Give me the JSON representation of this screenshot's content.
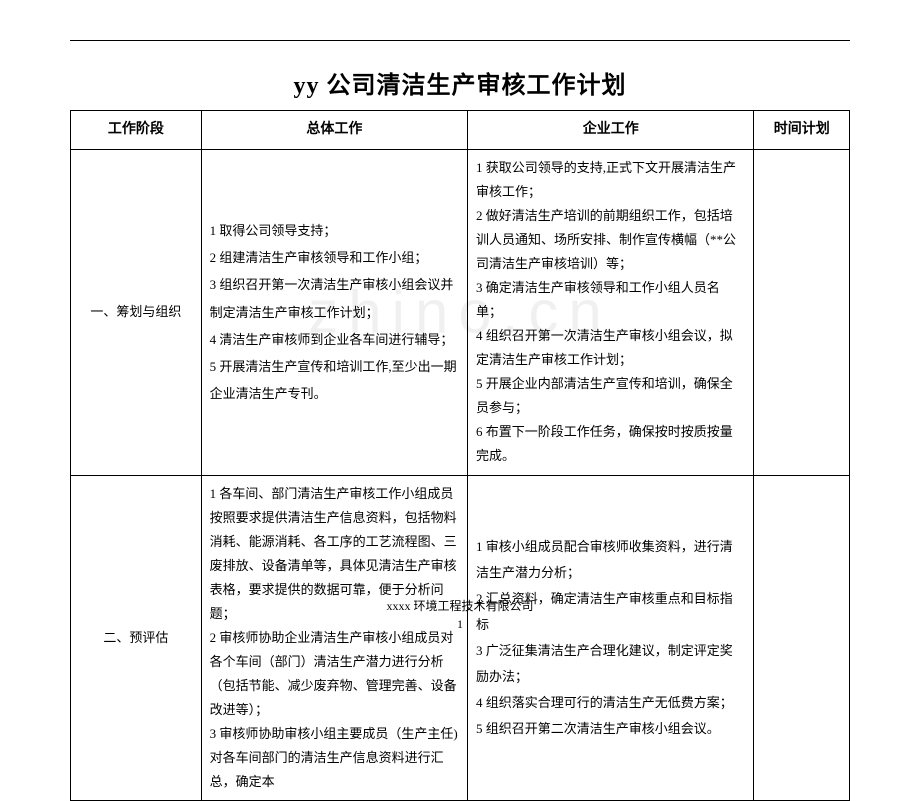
{
  "title": "yy 公司清洁生产审核工作计划",
  "watermark": "zhino.cn",
  "headers": {
    "stage": "工作阶段",
    "overall": "总体工作",
    "enterprise": "企业工作",
    "schedule": "时间计划"
  },
  "rows": [
    {
      "stage": "一、筹划与组织",
      "overall": "1 取得公司领导支持；\n2 组建清洁生产审核领导和工作小组；\n3 组织召开第一次清洁生产审核小组会议并制定清洁生产审核工作计划；\n4 清洁生产审核师到企业各车间进行辅导；\n5 开展清洁生产宣传和培训工作,至少出一期企业清洁生产专刊。",
      "enterprise": "1 获取公司领导的支持,正式下文开展清洁生产审核工作；\n2 做好清洁生产培训的前期组织工作，包括培训人员通知、场所安排、制作宣传横幅（**公司清洁生产审核培训）等；\n3 确定清洁生产审核领导和工作小组人员名单；\n4 组织召开第一次清洁生产审核小组会议，拟定清洁生产审核工作计划；\n5 开展企业内部清洁生产宣传和培训，确保全员参与；\n6 布置下一阶段工作任务，确保按时按质按量完成。",
      "schedule": ""
    },
    {
      "stage": "二、预评估",
      "overall": "1 各车间、部门清洁生产审核工作小组成员按照要求提供清洁生产信息资料，包括物料消耗、能源消耗、各工序的工艺流程图、三废排放、设备清单等，具体见清洁生产审核表格，要求提供的数据可靠，便于分析问题；\n2 审核师协助企业清洁生产审核小组成员对各个车间（部门）清洁生产潜力进行分析（包括节能、减少废弃物、管理完善、设备改进等）；\n3 审核师协助审核小组主要成员（生产主任)对各车间部门的清洁生产信息资料进行汇总，确定本",
      "enterprise": "1 审核小组成员配合审核师收集资料，进行清洁生产潜力分析；\n2 汇总资料，确定清洁生产审核重点和目标指标\n3 广泛征集清洁生产合理化建议，制定评定奖励办法；\n4 组织落实合理可行的清洁生产无低费方案；\n5 组织召开第二次清洁生产审核小组会议。",
      "schedule": ""
    }
  ],
  "footer": {
    "company": "xxxx 环境工程技术有限公司",
    "page": "1"
  }
}
